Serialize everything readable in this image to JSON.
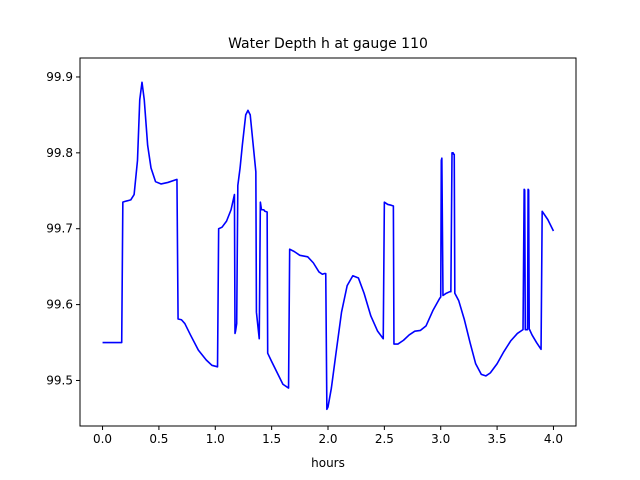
{
  "chart_data": {
    "type": "line",
    "title": "Water Depth h at gauge 110",
    "xlabel": "hours",
    "ylabel": "",
    "xlim": [
      -0.2,
      4.2
    ],
    "ylim": [
      99.44,
      99.925
    ],
    "xticks": [
      0.0,
      0.5,
      1.0,
      1.5,
      2.0,
      2.5,
      3.0,
      3.5,
      4.0
    ],
    "xtick_labels": [
      "0.0",
      "0.5",
      "1.0",
      "1.5",
      "2.0",
      "2.5",
      "3.0",
      "3.5",
      "4.0"
    ],
    "yticks": [
      99.5,
      99.6,
      99.7,
      99.8,
      99.9
    ],
    "ytick_labels": [
      "99.5",
      "99.6",
      "99.7",
      "99.8",
      "99.9"
    ],
    "grid": false,
    "series": [
      {
        "color": "#0000ff",
        "points": [
          [
            0.0,
            99.55
          ],
          [
            0.17,
            99.55
          ],
          [
            0.18,
            99.735
          ],
          [
            0.2,
            99.736
          ],
          [
            0.25,
            99.738
          ],
          [
            0.28,
            99.745
          ],
          [
            0.31,
            99.79
          ],
          [
            0.33,
            99.87
          ],
          [
            0.35,
            99.893
          ],
          [
            0.37,
            99.87
          ],
          [
            0.4,
            99.81
          ],
          [
            0.43,
            99.78
          ],
          [
            0.47,
            99.762
          ],
          [
            0.52,
            99.759
          ],
          [
            0.58,
            99.761
          ],
          [
            0.66,
            99.765
          ],
          [
            0.67,
            99.581
          ],
          [
            0.7,
            99.58
          ],
          [
            0.73,
            99.575
          ],
          [
            0.78,
            99.56
          ],
          [
            0.85,
            99.54
          ],
          [
            0.92,
            99.527
          ],
          [
            0.97,
            99.52
          ],
          [
            1.02,
            99.518
          ],
          [
            1.03,
            99.7
          ],
          [
            1.06,
            99.702
          ],
          [
            1.1,
            99.71
          ],
          [
            1.14,
            99.725
          ],
          [
            1.17,
            99.745
          ],
          [
            1.175,
            99.562
          ],
          [
            1.18,
            99.565
          ],
          [
            1.19,
            99.575
          ],
          [
            1.2,
            99.757
          ],
          [
            1.22,
            99.78
          ],
          [
            1.24,
            99.81
          ],
          [
            1.27,
            99.85
          ],
          [
            1.29,
            99.856
          ],
          [
            1.31,
            99.85
          ],
          [
            1.33,
            99.82
          ],
          [
            1.36,
            99.775
          ],
          [
            1.365,
            99.59
          ],
          [
            1.39,
            99.555
          ],
          [
            1.4,
            99.735
          ],
          [
            1.41,
            99.725
          ],
          [
            1.43,
            99.725
          ],
          [
            1.44,
            99.723
          ],
          [
            1.46,
            99.722
          ],
          [
            1.465,
            99.536
          ],
          [
            1.5,
            99.525
          ],
          [
            1.55,
            99.51
          ],
          [
            1.6,
            99.495
          ],
          [
            1.65,
            99.49
          ],
          [
            1.66,
            99.673
          ],
          [
            1.7,
            99.67
          ],
          [
            1.75,
            99.665
          ],
          [
            1.82,
            99.663
          ],
          [
            1.87,
            99.655
          ],
          [
            1.92,
            99.643
          ],
          [
            1.95,
            99.64
          ],
          [
            1.97,
            99.641
          ],
          [
            1.98,
            99.641
          ],
          [
            1.99,
            99.462
          ],
          [
            2.0,
            99.465
          ],
          [
            2.03,
            99.49
          ],
          [
            2.07,
            99.535
          ],
          [
            2.12,
            99.59
          ],
          [
            2.17,
            99.625
          ],
          [
            2.22,
            99.638
          ],
          [
            2.27,
            99.635
          ],
          [
            2.32,
            99.615
          ],
          [
            2.38,
            99.585
          ],
          [
            2.44,
            99.565
          ],
          [
            2.49,
            99.555
          ],
          [
            2.5,
            99.735
          ],
          [
            2.53,
            99.732
          ],
          [
            2.56,
            99.731
          ],
          [
            2.58,
            99.73
          ],
          [
            2.585,
            99.548
          ],
          [
            2.62,
            99.548
          ],
          [
            2.67,
            99.553
          ],
          [
            2.72,
            99.56
          ],
          [
            2.77,
            99.565
          ],
          [
            2.82,
            99.566
          ],
          [
            2.87,
            99.572
          ],
          [
            2.93,
            99.592
          ],
          [
            2.99,
            99.608
          ],
          [
            3.0,
            99.61
          ],
          [
            3.005,
            99.79
          ],
          [
            3.01,
            99.793
          ],
          [
            3.02,
            99.612
          ],
          [
            3.05,
            99.615
          ],
          [
            3.08,
            99.617
          ],
          [
            3.09,
            99.617
          ],
          [
            3.1,
            99.8
          ],
          [
            3.11,
            99.8
          ],
          [
            3.115,
            99.798
          ],
          [
            3.12,
            99.798
          ],
          [
            3.125,
            99.615
          ],
          [
            3.16,
            99.605
          ],
          [
            3.21,
            99.58
          ],
          [
            3.26,
            99.55
          ],
          [
            3.31,
            99.522
          ],
          [
            3.36,
            99.508
          ],
          [
            3.4,
            99.506
          ],
          [
            3.44,
            99.51
          ],
          [
            3.5,
            99.522
          ],
          [
            3.56,
            99.538
          ],
          [
            3.62,
            99.552
          ],
          [
            3.68,
            99.562
          ],
          [
            3.73,
            99.567
          ],
          [
            3.74,
            99.752
          ],
          [
            3.745,
            99.751
          ],
          [
            3.75,
            99.567
          ],
          [
            3.77,
            99.567
          ],
          [
            3.775,
            99.752
          ],
          [
            3.78,
            99.751
          ],
          [
            3.785,
            99.568
          ],
          [
            3.81,
            99.56
          ],
          [
            3.85,
            99.55
          ],
          [
            3.89,
            99.541
          ],
          [
            3.9,
            99.723
          ],
          [
            3.95,
            99.712
          ],
          [
            4.0,
            99.697
          ]
        ]
      }
    ]
  }
}
